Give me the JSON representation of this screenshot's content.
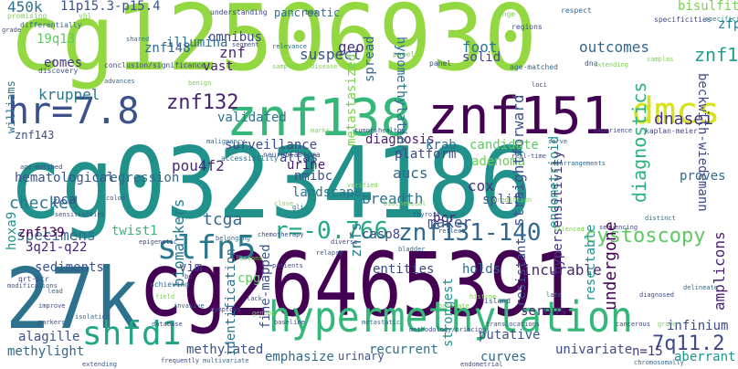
{
  "words": [
    {
      "text": "cg12506930",
      "color": "#93d741"
    },
    {
      "text": "cg03234186",
      "color": "#21918c"
    },
    {
      "text": "cg26465391",
      "color": "#440154"
    },
    {
      "text": "27k",
      "color": "#2c728e"
    },
    {
      "text": "znf138",
      "color": "#35b779"
    },
    {
      "text": "znf151",
      "color": "#440154"
    },
    {
      "text": "hypermethylation",
      "color": "#35b779"
    },
    {
      "text": "hr=7.8",
      "color": "#3b528b"
    },
    {
      "text": "dmcs",
      "color": "#d8e219"
    },
    {
      "text": "slfn5",
      "color": "#2a788e"
    },
    {
      "text": "shfd1",
      "color": "#21a585"
    },
    {
      "text": "znf132",
      "color": "#482475"
    },
    {
      "text": "r=-0.766",
      "color": "#22a884"
    },
    {
      "text": "znf131-140",
      "color": "#31688e"
    },
    {
      "text": "cystoscopy",
      "color": "#5ec962"
    },
    {
      "text": "7q11.2",
      "color": "#3e4989"
    },
    {
      "text": "450k",
      "color": "#2c728e"
    },
    {
      "text": "11p15.3-p15.4",
      "color": "#3b528b"
    },
    {
      "text": "bisulfite",
      "color": "#7ad151"
    },
    {
      "text": "zfp28",
      "color": "#26828e"
    },
    {
      "text": "znf133",
      "color": "#1f9e89"
    },
    {
      "text": "eomes",
      "color": "#443983"
    },
    {
      "text": "19q13",
      "color": "#5ec962"
    },
    {
      "text": "kruppel",
      "color": "#2a788e"
    },
    {
      "text": "znf143",
      "color": "#3e4a89"
    },
    {
      "text": "williams",
      "color": "#2c728e"
    },
    {
      "text": "hematological",
      "color": "#3b528b"
    },
    {
      "text": "regression",
      "color": "#31688e"
    },
    {
      "text": "omnibus",
      "color": "#3e4989"
    },
    {
      "text": "vast",
      "color": "#481f70"
    },
    {
      "text": "illumina",
      "color": "#2d708e"
    },
    {
      "text": "znf148",
      "color": "#31688e"
    },
    {
      "text": "znf",
      "color": "#482878"
    },
    {
      "text": "validated",
      "color": "#2c728e"
    },
    {
      "text": "suspect",
      "color": "#3b528b"
    },
    {
      "text": "geo",
      "color": "#46327e"
    },
    {
      "text": "foot",
      "color": "#2a788e"
    },
    {
      "text": "outcomes",
      "color": "#31688e"
    },
    {
      "text": "solid",
      "color": "#3e4989"
    },
    {
      "text": "adenoma",
      "color": "#6ece58"
    },
    {
      "text": "endometrioid",
      "color": "#21918c"
    },
    {
      "text": "dnasei",
      "color": "#46337f"
    },
    {
      "text": "beckwith-wiedemann",
      "color": "#3e4989"
    },
    {
      "text": "kaplan-meier",
      "color": "#414487"
    },
    {
      "text": "surveillance",
      "color": "#3e4989"
    },
    {
      "text": "pou4f2",
      "color": "#482878"
    },
    {
      "text": "tcga",
      "color": "#31688e"
    },
    {
      "text": "nmibc",
      "color": "#3b528b"
    },
    {
      "text": "landscape",
      "color": "#2c728e"
    },
    {
      "text": "urine",
      "color": "#481b6d"
    },
    {
      "text": "checked",
      "color": "#2a788e"
    },
    {
      "text": "specimens",
      "color": "#31688e"
    },
    {
      "text": "hoxa9",
      "color": "#21918c"
    },
    {
      "text": "pca",
      "color": "#3e4989"
    },
    {
      "text": "znf139",
      "color": "#440154"
    },
    {
      "text": "3q21-q22",
      "color": "#482878"
    },
    {
      "text": "twist1",
      "color": "#35b779"
    },
    {
      "text": "biomarkers",
      "color": "#2a788e"
    },
    {
      "text": "sediments",
      "color": "#3b528b"
    },
    {
      "text": "vim",
      "color": "#3e4989"
    },
    {
      "text": "cpg",
      "color": "#5ec962"
    },
    {
      "text": "alagille",
      "color": "#3b528b"
    },
    {
      "text": "methylight",
      "color": "#31688e"
    },
    {
      "text": "methylated",
      "color": "#3b528b"
    },
    {
      "text": "breadth",
      "color": "#2c728e"
    },
    {
      "text": "znfs",
      "color": "#2a788e"
    },
    {
      "text": "maker",
      "color": "#3b528b"
    },
    {
      "text": "bcr",
      "color": "#481f70"
    },
    {
      "text": "casp8",
      "color": "#3e4989"
    },
    {
      "text": "holds",
      "color": "#31688e"
    },
    {
      "text": "incurable",
      "color": "#482878"
    },
    {
      "text": "strongest",
      "color": "#21918c"
    },
    {
      "text": "putative",
      "color": "#3b528b"
    },
    {
      "text": "recurrent",
      "color": "#2c728e"
    },
    {
      "text": "univariate",
      "color": "#3e4989"
    },
    {
      "text": "n=15",
      "color": "#46337f"
    },
    {
      "text": "curves",
      "color": "#31688e"
    },
    {
      "text": "serous",
      "color": "#482878"
    },
    {
      "text": "aucs",
      "color": "#31688e"
    },
    {
      "text": "cox",
      "color": "#46327e"
    },
    {
      "text": "split",
      "color": "#3b528b"
    },
    {
      "text": "krab",
      "color": "#2c728e"
    },
    {
      "text": "platform",
      "color": "#3e4989"
    },
    {
      "text": "diagnosis",
      "color": "#481f70"
    },
    {
      "text": "proves",
      "color": "#31688e"
    },
    {
      "text": "hypersensitivity",
      "color": "#46327e"
    },
    {
      "text": "straightforward",
      "color": "#3b528b"
    },
    {
      "text": "diagnostics",
      "color": "#2db27d"
    },
    {
      "text": "candidate",
      "color": "#5ec962"
    },
    {
      "text": "infinium",
      "color": "#3e4989"
    },
    {
      "text": "amplicons",
      "color": "#481f70"
    },
    {
      "text": "resectable",
      "color": "#21918c"
    },
    {
      "text": "undergone",
      "color": "#440154"
    },
    {
      "text": "aberrant",
      "color": "#21918c"
    },
    {
      "text": "entities",
      "color": "#3e4989"
    },
    {
      "text": "emphasize",
      "color": "#31688e"
    },
    {
      "text": "identification",
      "color": "#2c728e"
    },
    {
      "text": "fine-mapped",
      "color": "#3b528b"
    },
    {
      "text": "atlas",
      "color": "#3e4989"
    },
    {
      "text": "spread",
      "color": "#31688e"
    },
    {
      "text": "hypomethylation",
      "color": "#2c728e"
    },
    {
      "text": "metastasized",
      "color": "#7ad151"
    },
    {
      "text": "neuroblastoma",
      "color": "#3b528b"
    },
    {
      "text": "accessibility",
      "color": "#2c728e"
    },
    {
      "text": "urinary",
      "color": "#3b528b"
    },
    {
      "text": "qrt-pcr",
      "color": "#3e4989"
    },
    {
      "text": "achieving",
      "color": "#31688e"
    },
    {
      "text": "considered",
      "color": "#7ad151"
    },
    {
      "text": "negatively",
      "color": "#7ad151"
    },
    {
      "text": "promising",
      "color": "#3e4989"
    },
    {
      "text": "vhl",
      "color": "#2c728e"
    },
    {
      "text": "understanding",
      "color": "#3b528b"
    },
    {
      "text": "pancreatic",
      "color": "#7ad151"
    },
    {
      "text": "box",
      "color": "#31688e"
    },
    {
      "text": "range",
      "color": "#3e4989"
    },
    {
      "text": "respect",
      "color": "#21918c"
    },
    {
      "text": "specificities",
      "color": "#31688e"
    },
    {
      "text": "differentially",
      "color": "#3b528b"
    },
    {
      "text": "discovery",
      "color": "#3e4989"
    },
    {
      "text": "conclusion/significance",
      "color": "#2c728e"
    },
    {
      "text": "shared",
      "color": "#3b528b"
    },
    {
      "text": "segment",
      "color": "#31688e"
    },
    {
      "text": "relevance",
      "color": "#7ad151"
    },
    {
      "text": "disease",
      "color": "#3e4989"
    },
    {
      "text": "regions",
      "color": "#7ad151"
    },
    {
      "text": "panel",
      "color": "#3b528b"
    },
    {
      "text": "age-matched",
      "color": "#31688e"
    },
    {
      "text": "dna",
      "color": "#3e4989"
    },
    {
      "text": "samples",
      "color": "#7ad151"
    },
    {
      "text": "advances",
      "color": "#7ad151"
    },
    {
      "text": "benign",
      "color": "#31688e"
    },
    {
      "text": "detection",
      "color": "#7ad151"
    },
    {
      "text": "malignancy",
      "color": "#3e4989"
    },
    {
      "text": "marks",
      "color": "#3b528b"
    },
    {
      "text": "tumors",
      "color": "#31688e"
    },
    {
      "text": "healthy",
      "color": "#7ad151"
    },
    {
      "text": "serve",
      "color": "#3e4989"
    },
    {
      "text": "experience",
      "color": "#3b528b"
    },
    {
      "text": "real-time",
      "color": "#31688e"
    },
    {
      "text": "rearrangements",
      "color": "#3e4989"
    },
    {
      "text": "colon",
      "color": "#3b528b"
    },
    {
      "text": "sensitivities",
      "color": "#31688e"
    },
    {
      "text": "close",
      "color": "#3e4989"
    },
    {
      "text": "epigenetic",
      "color": "#3b528b"
    },
    {
      "text": "gli",
      "color": "#7ad151"
    },
    {
      "text": "biochemical",
      "color": "#3e4989"
    },
    {
      "text": "verified",
      "color": "#31688e"
    },
    {
      "text": "thyroid",
      "color": "#7ad151"
    },
    {
      "text": "prediction",
      "color": "#7ad151"
    },
    {
      "text": "sequencing",
      "color": "#3b528b"
    },
    {
      "text": "distinct",
      "color": "#7ad151"
    },
    {
      "text": "reflect",
      "color": "#3e4989"
    },
    {
      "text": "diverse",
      "color": "#31688e"
    },
    {
      "text": "bladder",
      "color": "#3b528b"
    },
    {
      "text": "silenced",
      "color": "#3e4989"
    },
    {
      "text": "chemotherapy",
      "color": "#31688e"
    },
    {
      "text": "modifications",
      "color": "#7ad151"
    },
    {
      "text": "lesions",
      "color": "#3e4989"
    },
    {
      "text": "patients",
      "color": "#3b528b"
    },
    {
      "text": "belonging",
      "color": "#7ad151"
    },
    {
      "text": "relapse",
      "color": "#3e4989"
    },
    {
      "text": "bp",
      "color": "#31688e"
    },
    {
      "text": "field",
      "color": "#3b528b"
    },
    {
      "text": "invasive",
      "color": "#3e4989"
    },
    {
      "text": "symptoms",
      "color": "#7ad151"
    },
    {
      "text": "lack",
      "color": "#31688e"
    },
    {
      "text": "genome",
      "color": "#3e4989"
    },
    {
      "text": "lead",
      "color": "#3b528b"
    },
    {
      "text": "improve",
      "color": "#7ad151"
    },
    {
      "text": "markers",
      "color": "#31688e"
    },
    {
      "text": "isolation",
      "color": "#3e4989"
    },
    {
      "text": "database",
      "color": "#3b528b"
    },
    {
      "text": "baseline",
      "color": "#31688e"
    },
    {
      "text": "metastatic",
      "color": "#3e4989"
    },
    {
      "text": "methodology/principal",
      "color": "#3b528b"
    },
    {
      "text": "translocations",
      "color": "#31688e"
    },
    {
      "text": "prostate",
      "color": "#3e4989"
    },
    {
      "text": "histone",
      "color": "#3b528b"
    },
    {
      "text": "resistant",
      "color": "#7ad151"
    },
    {
      "text": "late",
      "color": "#7ad151"
    },
    {
      "text": "island",
      "color": "#3e4989"
    },
    {
      "text": "diagnosed",
      "color": "#31688e"
    },
    {
      "text": "delineate",
      "color": "#3b528b"
    },
    {
      "text": "cancerous",
      "color": "#3e4989"
    },
    {
      "text": "grade",
      "color": "#31688e"
    },
    {
      "text": "extending",
      "color": "#3e4989"
    },
    {
      "text": "frequently",
      "color": "#7ad151"
    },
    {
      "text": "multivariate",
      "color": "#3b528b"
    },
    {
      "text": "endometrial",
      "color": "#3e4989"
    },
    {
      "text": "chromosomally",
      "color": "#31688e"
    },
    {
      "text": "loci",
      "color": "#3e4989"
    },
    {
      "text": "systematic",
      "color": "#31688e"
    },
    {
      "text": "cg",
      "color": "#3e4989"
    },
    {
      "text": "hashtag",
      "color": "#7ad151"
    },
    {
      "text": "histology",
      "color": "#3b528b"
    },
    {
      "text": "similarly",
      "color": "#7ad151"
    },
    {
      "text": "screened",
      "color": "#3e4989"
    }
  ]
}
